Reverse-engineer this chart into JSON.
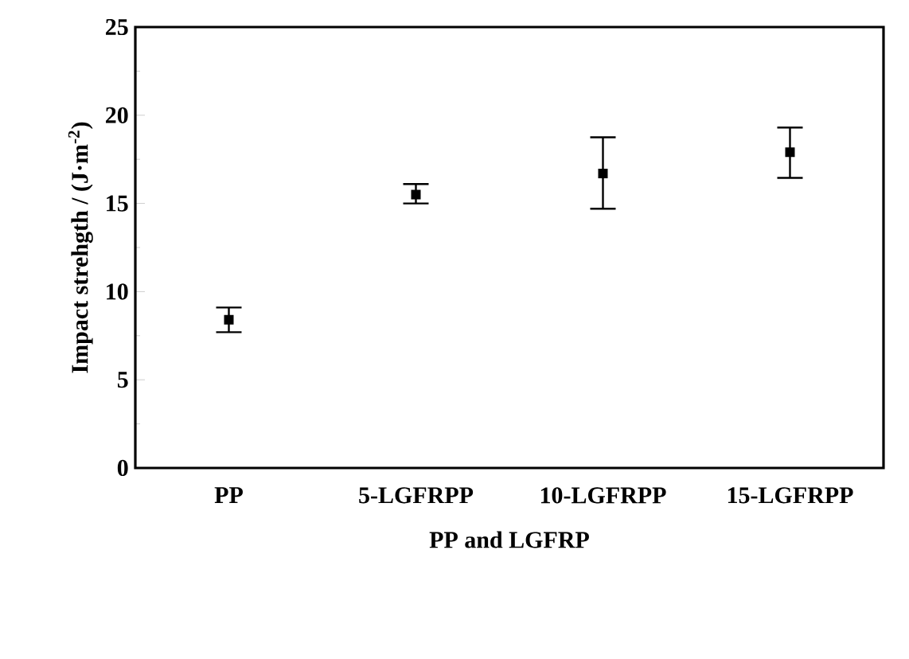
{
  "chart_data": {
    "type": "scatter",
    "xlabel": "PP and LGFRP",
    "ylabel": "Impact strehgth / (J·m$^{-2}$)",
    "categories": [
      "PP",
      "5-LGFRPP",
      "10-LGFRPP",
      "15-LGFRPP"
    ],
    "values": [
      8.4,
      15.5,
      16.7,
      17.9
    ],
    "errors": [
      [
        7.7,
        9.1
      ],
      [
        15.0,
        16.1
      ],
      [
        14.7,
        18.75
      ],
      [
        16.45,
        19.3
      ]
    ],
    "color": "#000000",
    "marker": "square",
    "ylim": [
      0,
      25
    ],
    "yticks": [
      0,
      5,
      10,
      15,
      20,
      25
    ],
    "grid": false
  }
}
